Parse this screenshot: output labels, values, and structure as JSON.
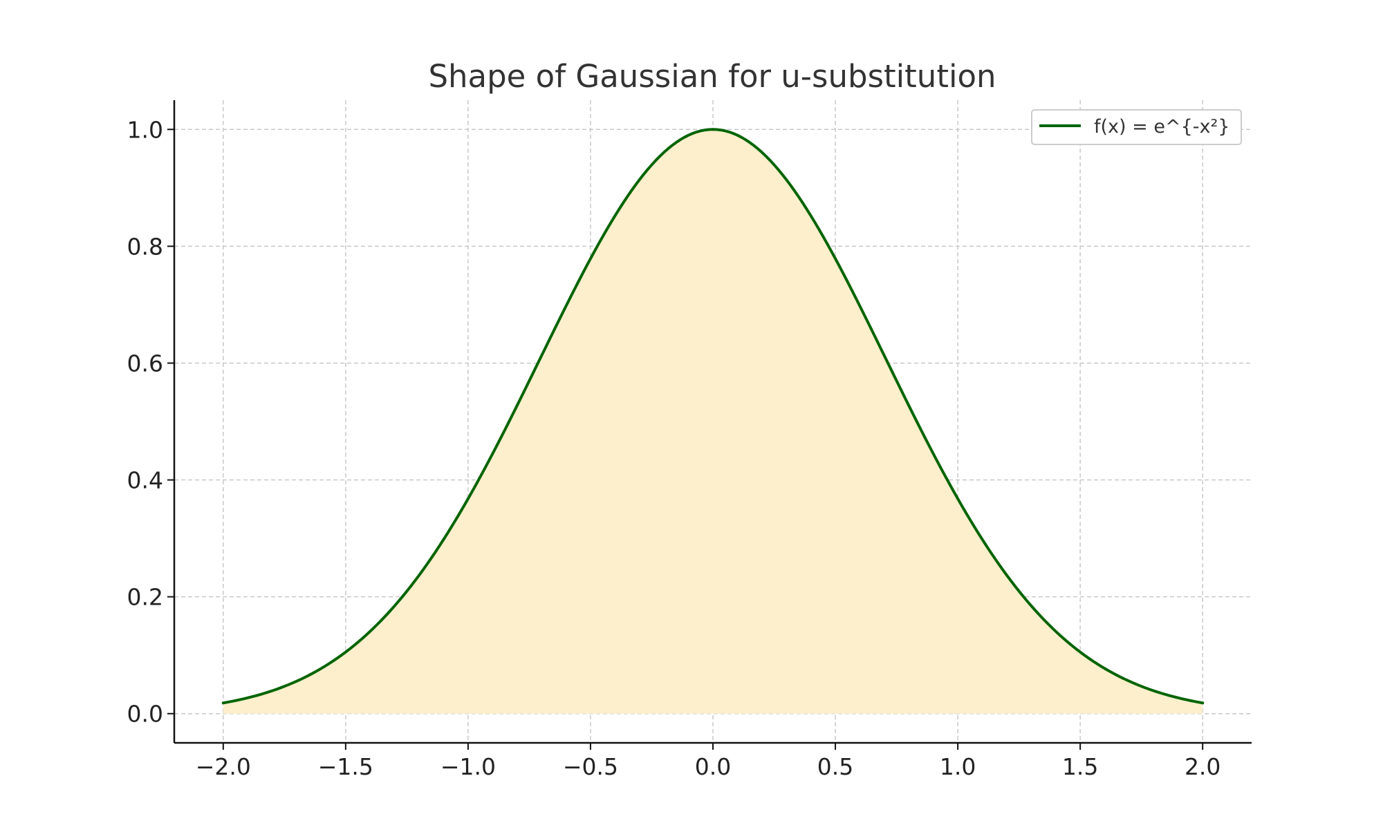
{
  "chart_data": {
    "type": "area",
    "title": "Shape of Gaussian for u-substitution",
    "xlabel": "",
    "ylabel": "",
    "xlim": [
      -2.2,
      2.2
    ],
    "ylim": [
      -0.05,
      1.05
    ],
    "x_ticks": [
      -2.0,
      -1.5,
      -1.0,
      -0.5,
      0.0,
      0.5,
      1.0,
      1.5,
      2.0
    ],
    "x_tick_labels": [
      "−2.0",
      "−1.5",
      "−1.0",
      "−0.5",
      "0.0",
      "0.5",
      "1.0",
      "1.5",
      "2.0"
    ],
    "y_ticks": [
      0.0,
      0.2,
      0.4,
      0.6,
      0.8,
      1.0
    ],
    "y_tick_labels": [
      "0.0",
      "0.2",
      "0.4",
      "0.6",
      "0.8",
      "1.0"
    ],
    "grid": true,
    "legend_position": "top-right",
    "series": [
      {
        "name": "f(x) = e^{-x²}",
        "color": "#006400",
        "fill_color": "#fdefcc",
        "x": [
          -2.0,
          -1.75,
          -1.5,
          -1.25,
          -1.0,
          -0.75,
          -0.5,
          -0.25,
          0.0,
          0.25,
          0.5,
          0.75,
          1.0,
          1.25,
          1.5,
          1.75,
          2.0
        ],
        "y": [
          0.018,
          0.047,
          0.105,
          0.21,
          0.368,
          0.57,
          0.779,
          0.939,
          1.0,
          0.939,
          0.779,
          0.57,
          0.368,
          0.21,
          0.105,
          0.047,
          0.018
        ]
      }
    ]
  }
}
